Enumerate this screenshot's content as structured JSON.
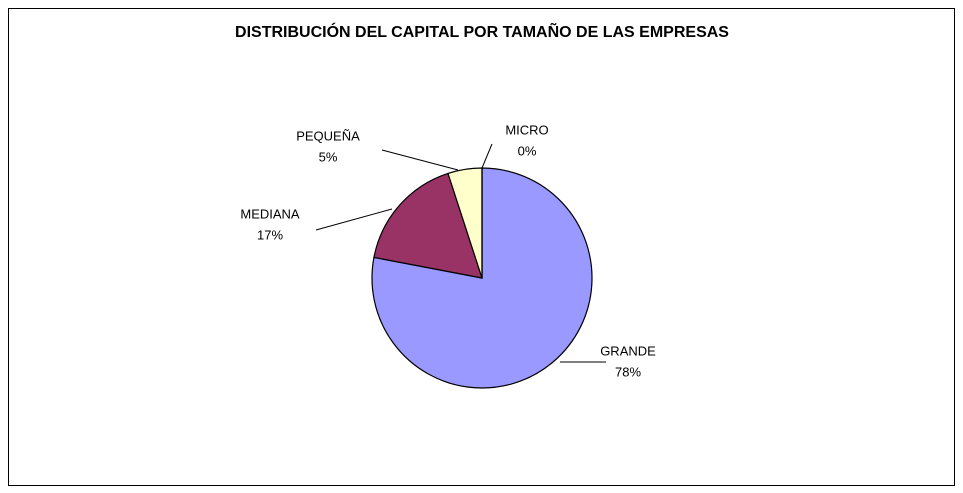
{
  "chart_data": {
    "type": "pie",
    "title": "DISTRIBUCIÓN DEL CAPITAL POR TAMAÑO DE LAS EMPRESAS",
    "categories": [
      "GRANDE",
      "MEDIANA",
      "PEQUEÑA",
      "MICRO"
    ],
    "values": [
      78,
      17,
      5,
      0
    ],
    "value_labels": [
      "78%",
      "17%",
      "5%",
      "0%"
    ],
    "colors": [
      "#9999ff",
      "#993366",
      "#ffffcc",
      "#ccffff"
    ]
  }
}
